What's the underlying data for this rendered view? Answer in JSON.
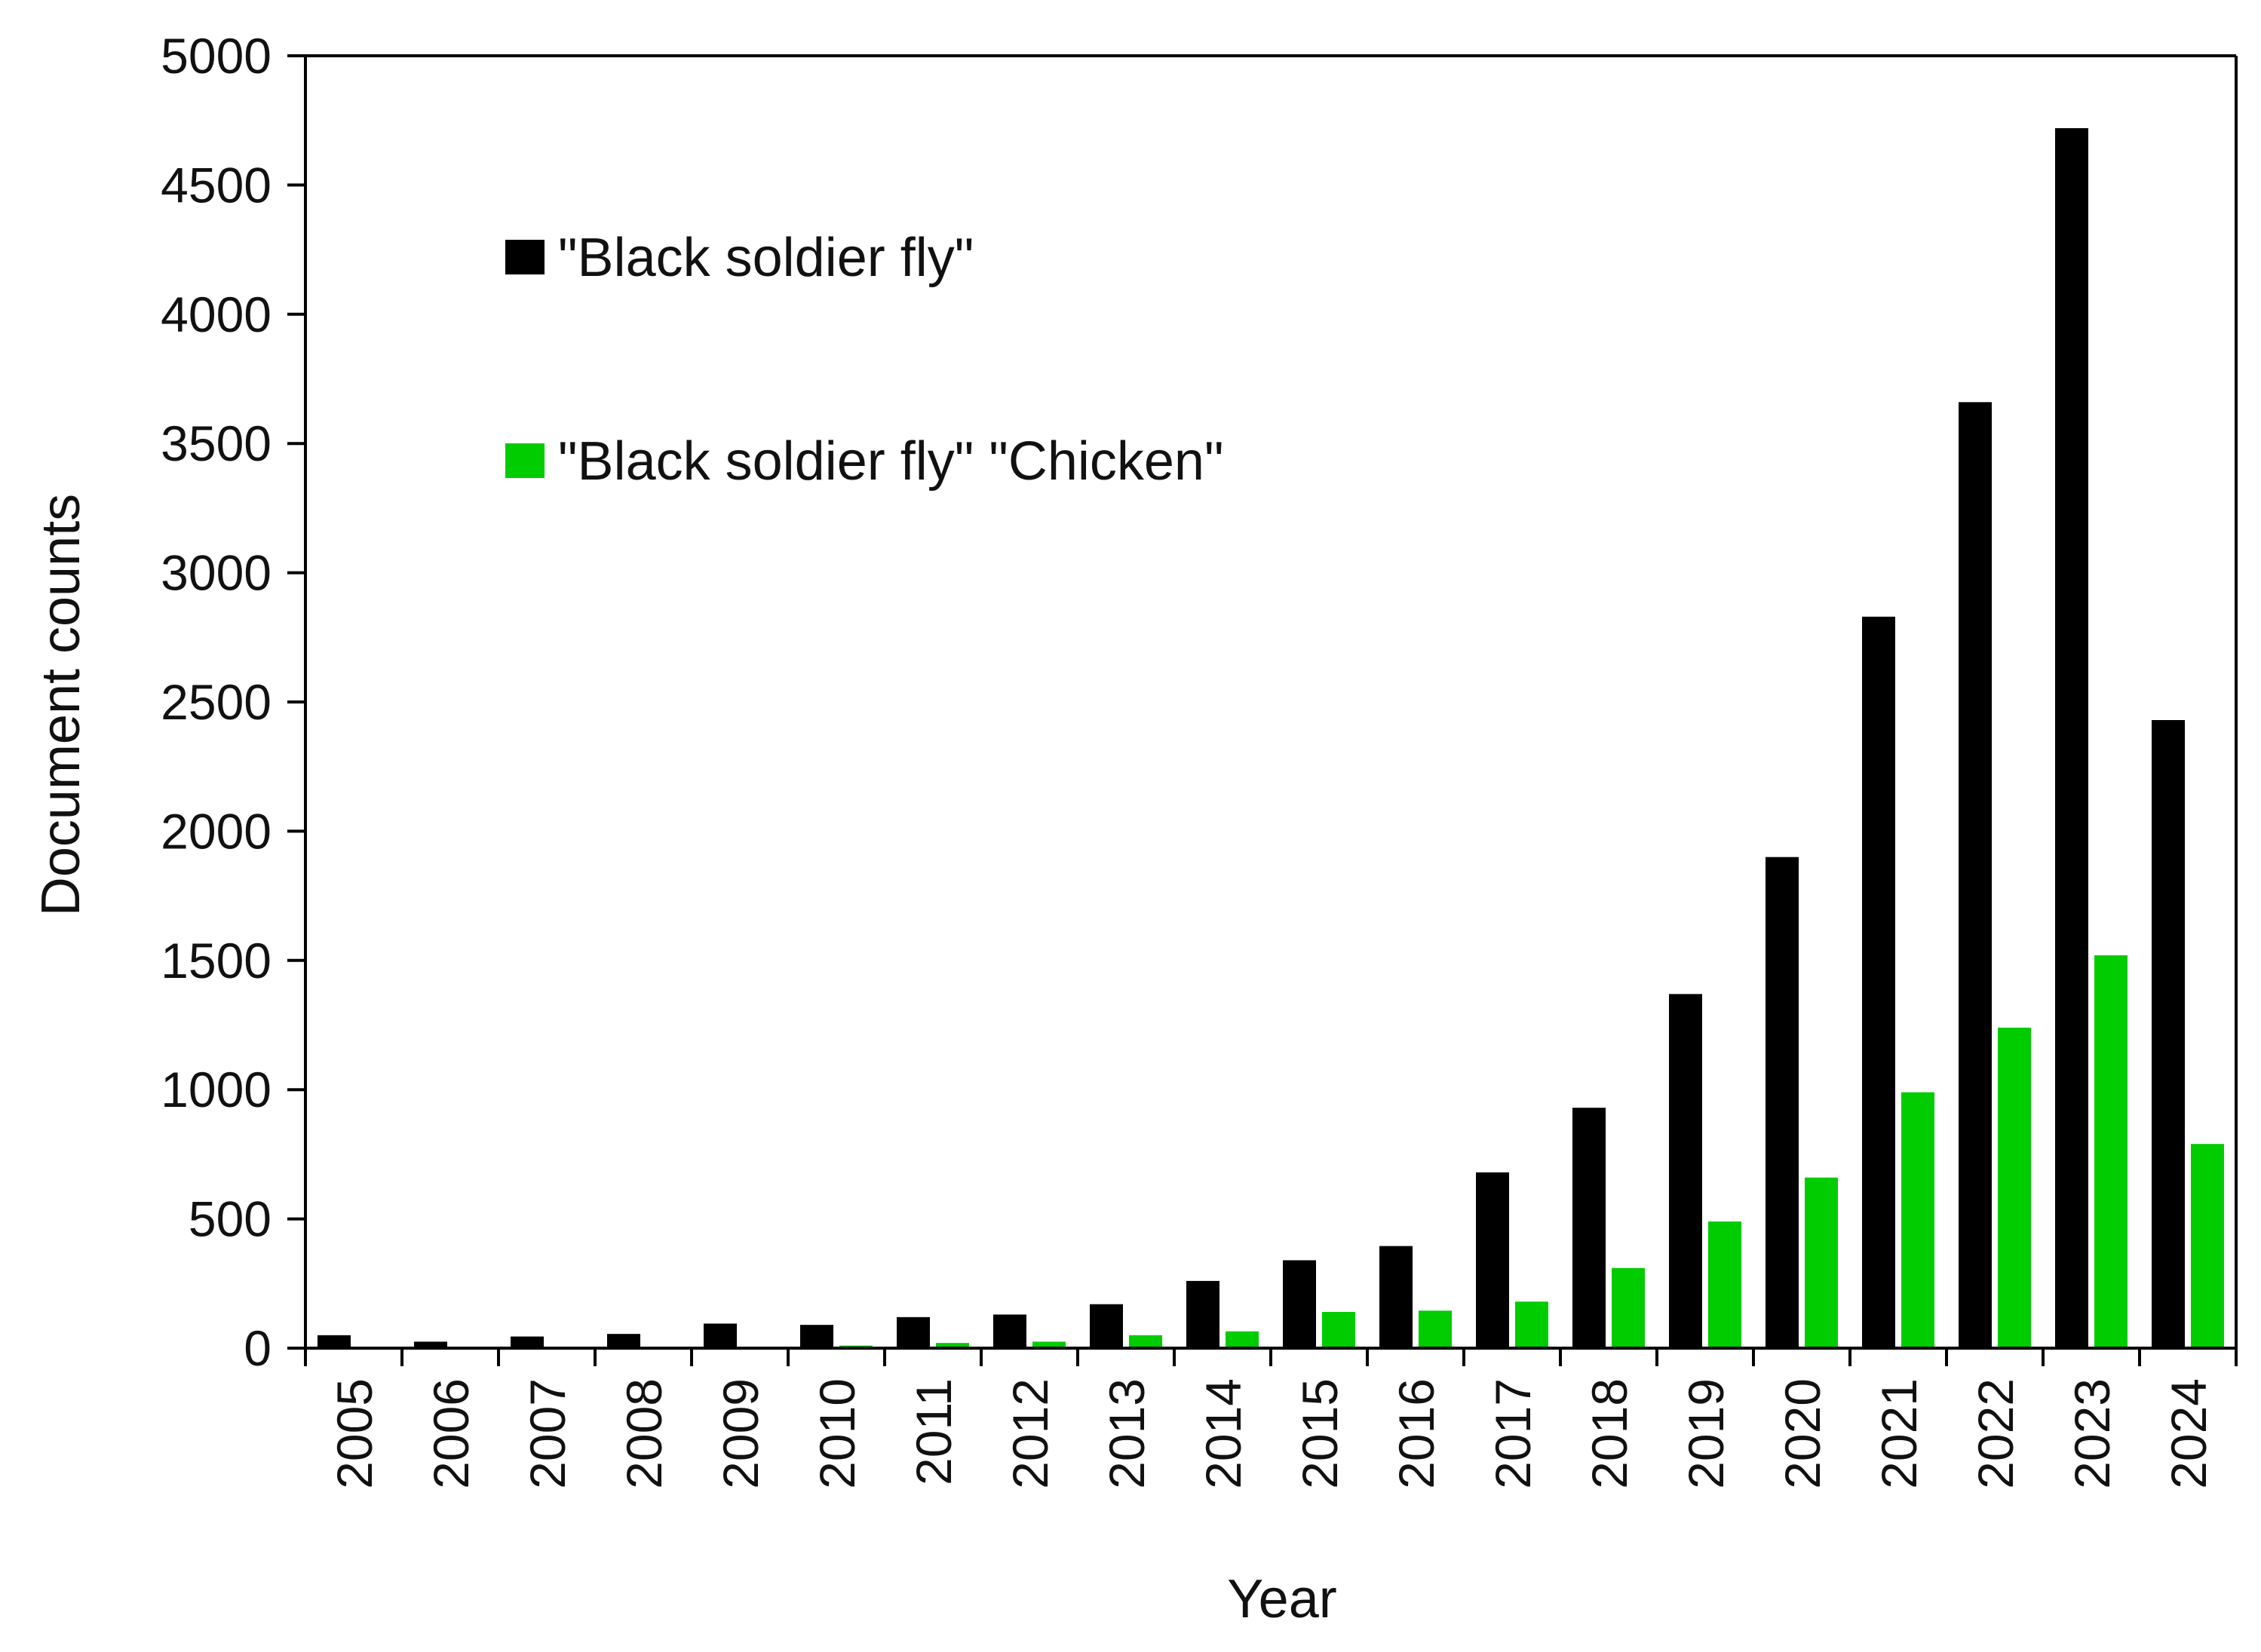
{
  "chart_data": {
    "type": "bar",
    "title": "",
    "xlabel": "Year",
    "ylabel": "Document counts",
    "ylim": [
      0,
      5000
    ],
    "yticks": [
      0,
      500,
      1000,
      1500,
      2000,
      2500,
      3000,
      3500,
      4000,
      4500,
      5000
    ],
    "grid": false,
    "legend_position": "top-left",
    "categories": [
      "2005",
      "2006",
      "2007",
      "2008",
      "2009",
      "2010",
      "2011",
      "2012",
      "2013",
      "2014",
      "2015",
      "2016",
      "2017",
      "2018",
      "2019",
      "2020",
      "2021",
      "2022",
      "2023",
      "2024"
    ],
    "series": [
      {
        "name": "\"Black soldier fly\"",
        "color": "#000000",
        "values": [
          50,
          25,
          45,
          55,
          95,
          90,
          120,
          130,
          170,
          260,
          340,
          395,
          680,
          930,
          1370,
          1900,
          2830,
          3660,
          4720,
          2430
        ]
      },
      {
        "name": "\"Black soldier fly\" \"Chicken\"",
        "color": "#00cc00",
        "values": [
          0,
          0,
          0,
          0,
          0,
          10,
          20,
          25,
          50,
          65,
          140,
          145,
          180,
          310,
          490,
          660,
          990,
          1240,
          1520,
          790
        ]
      }
    ]
  }
}
